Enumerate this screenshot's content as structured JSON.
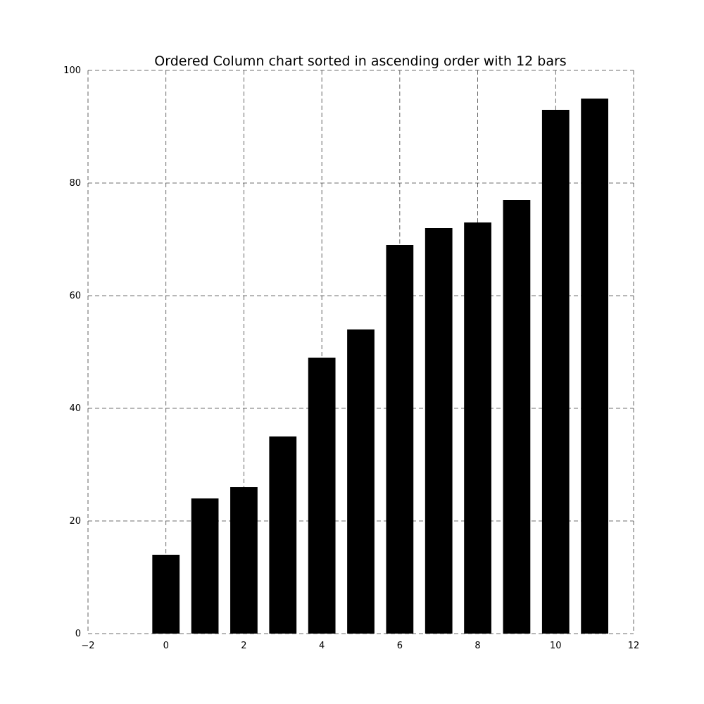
{
  "chart_data": {
    "type": "bar",
    "title": "Ordered Column chart sorted in ascending order with 12 bars",
    "xlabel": "",
    "ylabel": "",
    "categories": [
      0,
      1,
      2,
      3,
      4,
      5,
      6,
      7,
      8,
      9,
      10,
      11
    ],
    "values": [
      14,
      24,
      26,
      35,
      49,
      54,
      69,
      72,
      73,
      77,
      93,
      95
    ],
    "bar_width": 0.7,
    "bar_color": "#000000",
    "xlim": [
      -2,
      12
    ],
    "ylim": [
      0,
      100
    ],
    "x_ticks": [
      -2,
      0,
      2,
      4,
      6,
      8,
      10,
      12
    ],
    "x_tick_labels": [
      "−2",
      "0",
      "2",
      "4",
      "6",
      "8",
      "10",
      "12"
    ],
    "y_ticks": [
      0,
      20,
      40,
      60,
      80,
      100
    ],
    "y_tick_labels": [
      "0",
      "20",
      "40",
      "60",
      "80",
      "100"
    ],
    "grid": true,
    "grid_style": "dashed",
    "frame": false
  }
}
